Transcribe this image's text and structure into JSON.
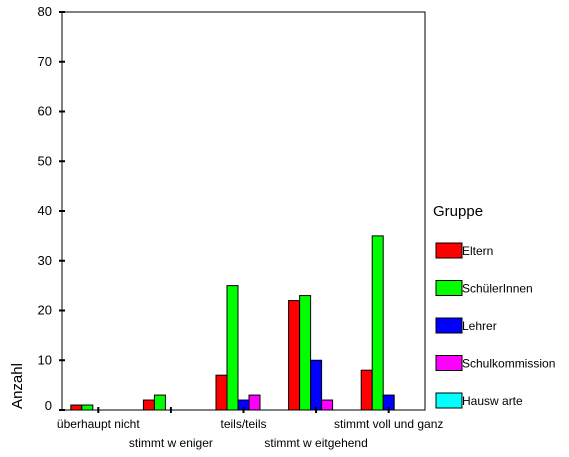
{
  "chart_data": {
    "type": "bar",
    "title": "",
    "xlabel": "",
    "ylabel": "Anzahl",
    "ylim": [
      0,
      80
    ],
    "yticks": [
      0,
      10,
      20,
      30,
      40,
      50,
      60,
      70,
      80
    ],
    "grid": false,
    "legend_position": "right",
    "legend_title": "Gruppe",
    "categories": [
      "überhaupt nicht",
      "stimmt w eniger",
      "teils/teils",
      "stimmt w eitgehend",
      "stimmt voll und ganz"
    ],
    "series": [
      {
        "name": "Eltern",
        "color": "#ff0000",
        "values": [
          1,
          2,
          7,
          22,
          8
        ]
      },
      {
        "name": "SchülerInnen",
        "color": "#00ff00",
        "values": [
          1,
          3,
          25,
          23,
          35
        ]
      },
      {
        "name": "Lehrer",
        "color": "#0000ff",
        "values": [
          0,
          0,
          2,
          10,
          3
        ]
      },
      {
        "name": "Schulkommission",
        "color": "#ff00ff",
        "values": [
          0,
          0,
          3,
          2,
          0
        ]
      },
      {
        "name": "Hausw arte",
        "color": "#00ffff",
        "values": [
          0,
          0,
          0,
          0,
          0
        ]
      }
    ]
  }
}
